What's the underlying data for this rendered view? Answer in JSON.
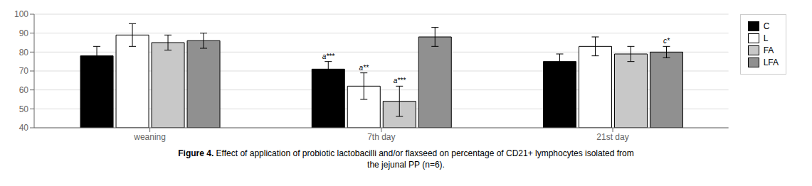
{
  "chart_data": {
    "type": "bar",
    "categories": [
      "weaning",
      "7th day",
      "21st day"
    ],
    "series": [
      {
        "name": "C",
        "color": "#000000",
        "values": [
          78,
          71,
          75
        ],
        "errors": [
          5,
          4,
          4
        ],
        "annotations": [
          null,
          "a***",
          null
        ]
      },
      {
        "name": "L",
        "color": "#ffffff",
        "values": [
          89,
          62,
          83
        ],
        "errors": [
          6,
          7,
          5
        ],
        "annotations": [
          null,
          "a**",
          null
        ]
      },
      {
        "name": "FA",
        "color": "#c8c8c8",
        "values": [
          85,
          54,
          79
        ],
        "errors": [
          4,
          8,
          4
        ],
        "annotations": [
          null,
          "a***",
          null
        ]
      },
      {
        "name": "LFA",
        "color": "#909090",
        "values": [
          86,
          88,
          80
        ],
        "errors": [
          4,
          5,
          3
        ],
        "annotations": [
          null,
          null,
          "c*"
        ]
      }
    ],
    "ylim": [
      40,
      100
    ],
    "yticks": [
      40,
      50,
      60,
      70,
      80,
      90,
      100
    ],
    "grid": true,
    "legend": "right",
    "caption": [
      "Figure 4. Effect of application of probiotic lactobacilli and/or flaxseed on percentage of CD21+ lymphocytes isolated from",
      "the jejunal PP (n=6)."
    ]
  }
}
